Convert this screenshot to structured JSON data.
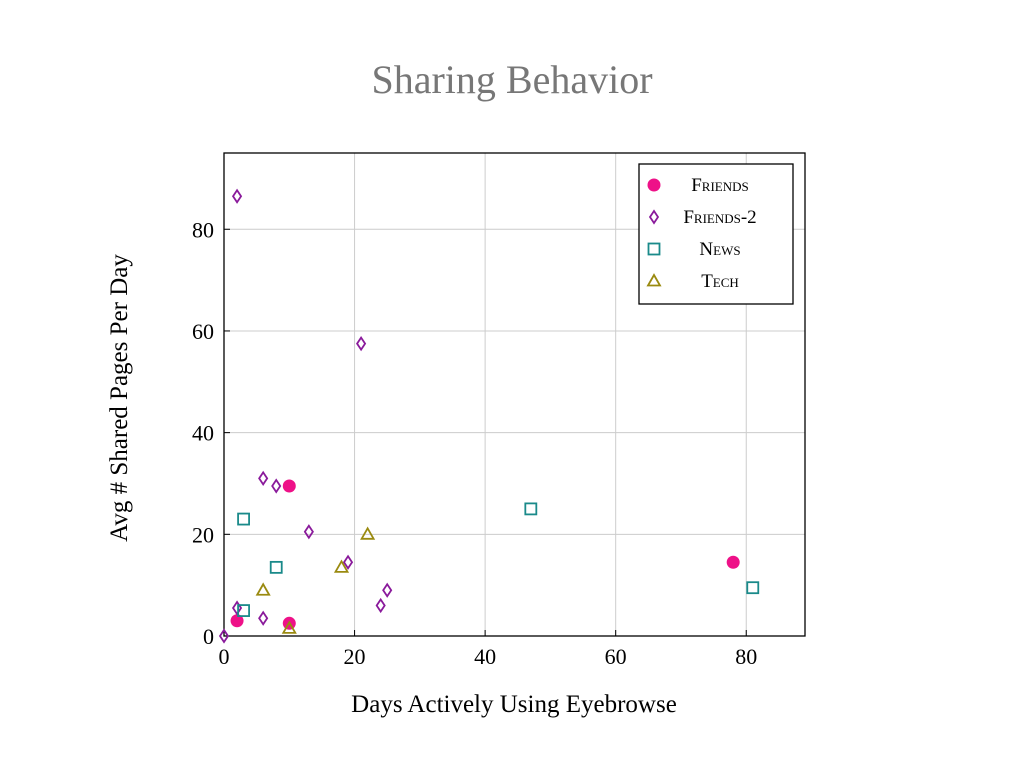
{
  "slide": {
    "title": "Sharing Behavior"
  },
  "colors": {
    "friends": "#ee1188",
    "friends2": "#8a1a9b",
    "news": "#1a8a8a",
    "tech": "#9a8a10",
    "grid": "#cccccc"
  },
  "chart_data": {
    "type": "scatter",
    "xlabel": "Days Actively Using Eyebrowse",
    "ylabel": "Avg # Shared Pages Per Day",
    "xlim": [
      0,
      89
    ],
    "ylim": [
      0,
      95
    ],
    "xticks": [
      0,
      20,
      40,
      60,
      80
    ],
    "yticks": [
      0,
      20,
      40,
      60,
      80
    ],
    "grid": true,
    "legend_position": "top-right",
    "series": [
      {
        "name": "Friends",
        "marker": "circle-filled",
        "color": "#ee1188",
        "points": [
          [
            2,
            3
          ],
          [
            10,
            29.5
          ],
          [
            10,
            2.5
          ],
          [
            78,
            14.5
          ]
        ]
      },
      {
        "name": "Friends-2",
        "marker": "diamond-open",
        "color": "#8a1a9b",
        "points": [
          [
            0,
            0
          ],
          [
            2,
            5.5
          ],
          [
            2,
            86.5
          ],
          [
            6,
            31
          ],
          [
            6,
            3.5
          ],
          [
            8,
            29.5
          ],
          [
            13,
            20.5
          ],
          [
            19,
            14.5
          ],
          [
            21,
            57.5
          ],
          [
            24,
            6
          ],
          [
            25,
            9
          ]
        ]
      },
      {
        "name": "News",
        "marker": "square-open",
        "color": "#1a8a8a",
        "points": [
          [
            3,
            23
          ],
          [
            3,
            5
          ],
          [
            8,
            13.5
          ],
          [
            47,
            25
          ],
          [
            81,
            9.5
          ]
        ]
      },
      {
        "name": "Tech",
        "marker": "triangle-open",
        "color": "#9a8a10",
        "points": [
          [
            6,
            9
          ],
          [
            10,
            1.5
          ],
          [
            18,
            13.5
          ],
          [
            22,
            20
          ]
        ]
      }
    ]
  }
}
